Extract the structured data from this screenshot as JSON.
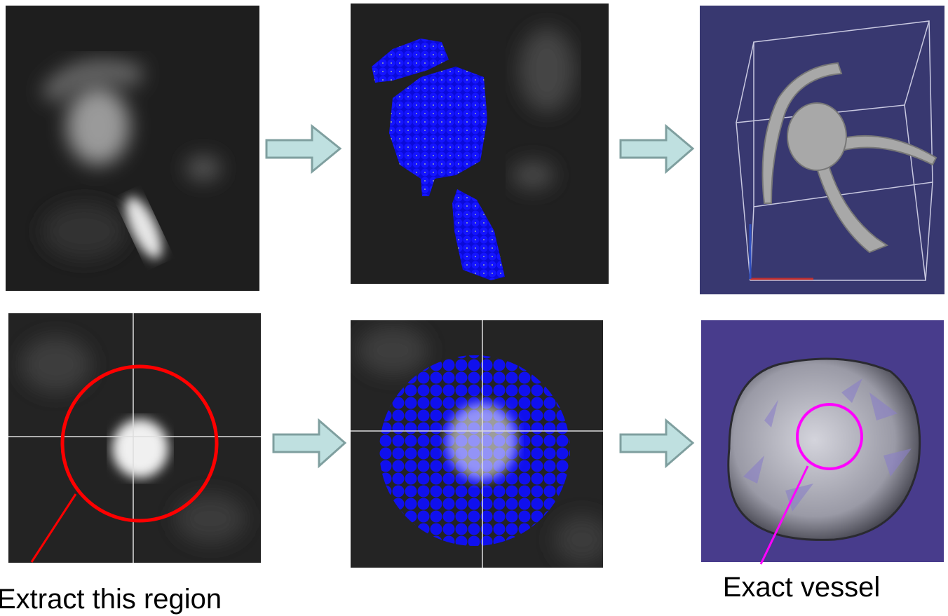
{
  "annotations": [
    {
      "label": "Extract this region"
    },
    {
      "label": "Exact vessel"
    }
  ]
}
